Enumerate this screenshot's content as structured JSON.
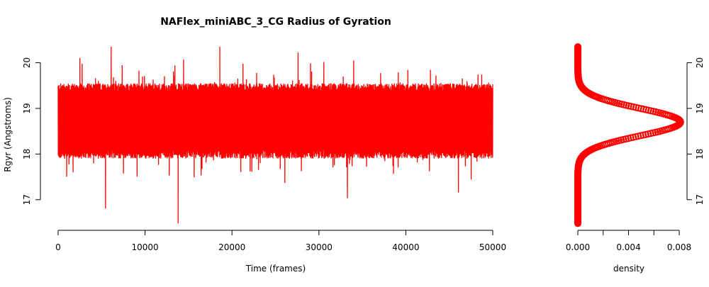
{
  "chart_data": [
    {
      "type": "line",
      "title": "NAFlex_miniABC_3_CG Radius of Gyration",
      "xlabel": "Time (frames)",
      "ylabel": "Rgyr (Angstroms)",
      "xlim": [
        0,
        50000
      ],
      "ylim": [
        16.5,
        20.35
      ],
      "x_ticks": [
        0,
        10000,
        20000,
        30000,
        40000,
        50000
      ],
      "y_ticks": [
        17,
        18,
        19,
        20
      ],
      "grid": false,
      "series": [
        {
          "color": "#ff0000",
          "n_frames": 50000,
          "mean": 18.7,
          "typical_range": [
            17.9,
            19.55
          ],
          "min": 16.48,
          "max": 20.35,
          "min_at_frame": 13800,
          "max_at_frame": 18600
        }
      ]
    },
    {
      "type": "line",
      "xlabel": "density",
      "xlim": [
        0,
        0.008
      ],
      "ylim": [
        16.5,
        20.35
      ],
      "x_ticks": [
        0.0,
        0.002,
        0.004,
        0.006,
        0.008
      ],
      "x_tick_labels": [
        "0.000",
        "",
        "0.004",
        "",
        "0.008"
      ],
      "y_ticks": [
        17,
        18,
        19,
        20
      ],
      "y_axis_side": "right",
      "grid": false,
      "series": [
        {
          "color": "#ff0000",
          "marker": "circle",
          "peak_density": 0.0081,
          "peak_at": 18.7,
          "sd": 0.3,
          "y_range": [
            16.48,
            20.35
          ]
        }
      ]
    }
  ]
}
